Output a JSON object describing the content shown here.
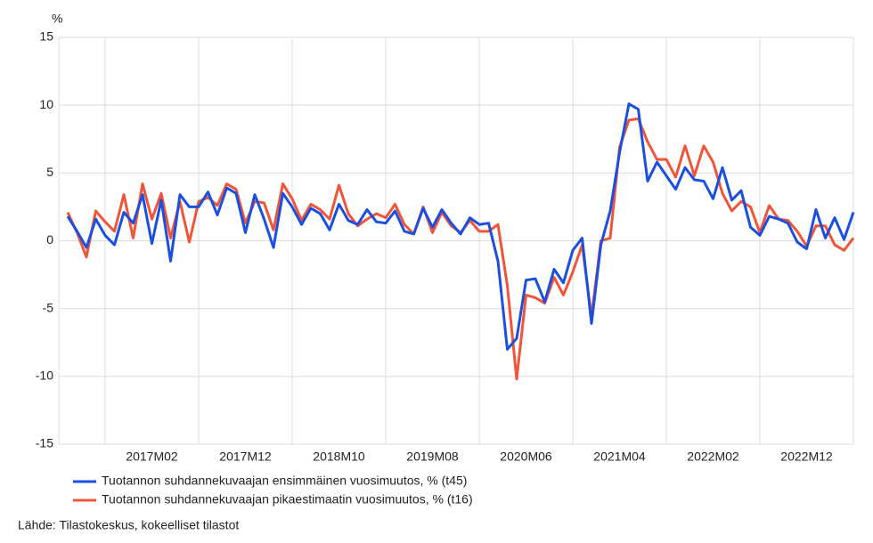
{
  "chart_data": {
    "type": "line",
    "y_unit": "%",
    "source": "Lähde: Tilastokeskus, kokeelliset tilastot",
    "categories": [
      null,
      null,
      null,
      null,
      null,
      null,
      null,
      null,
      null,
      "2017M02",
      null,
      null,
      null,
      null,
      null,
      null,
      null,
      null,
      null,
      "2017M12",
      null,
      null,
      null,
      null,
      null,
      null,
      null,
      null,
      null,
      "2018M10",
      null,
      null,
      null,
      null,
      null,
      null,
      null,
      null,
      null,
      "2019M08",
      null,
      null,
      null,
      null,
      null,
      null,
      null,
      null,
      null,
      "2020M06",
      null,
      null,
      null,
      null,
      null,
      null,
      null,
      null,
      null,
      "2021M04",
      null,
      null,
      null,
      null,
      null,
      null,
      null,
      null,
      null,
      "2022M02",
      null,
      null,
      null,
      null,
      null,
      null,
      null,
      null,
      null,
      "2022M12",
      null,
      null,
      null,
      null,
      null
    ],
    "series": [
      {
        "name": "Tuotannon suhdannekuvaajan ensimmäinen vuosimuutos, % (t45)",
        "color": "#1a4fe0",
        "values": [
          1.8,
          0.7,
          -0.5,
          1.6,
          0.4,
          -0.3,
          2.1,
          1.3,
          3.4,
          -0.2,
          3.0,
          -1.5,
          3.4,
          2.5,
          2.5,
          3.6,
          1.9,
          3.9,
          3.5,
          0.6,
          3.4,
          1.6,
          -0.5,
          3.5,
          2.5,
          1.2,
          2.4,
          2.0,
          0.8,
          2.7,
          1.5,
          1.2,
          2.3,
          1.4,
          1.3,
          2.2,
          0.7,
          0.5,
          2.4,
          1.0,
          2.3,
          1.3,
          0.5,
          1.7,
          1.2,
          1.3,
          -1.5,
          -8.0,
          -7.2,
          -2.9,
          -2.8,
          -4.5,
          -2.1,
          -3.1,
          -0.7,
          0.2,
          -6.1,
          -0.3,
          2.2,
          6.5,
          10.1,
          9.7,
          4.4,
          5.8,
          4.8,
          3.8,
          5.4,
          4.5,
          4.4,
          3.1,
          5.4,
          3.0,
          3.7,
          1.0,
          0.4,
          1.8,
          1.6,
          1.3,
          -0.1,
          -0.6,
          2.3,
          0.2,
          1.7,
          0.1,
          2.1
        ]
      },
      {
        "name": "Tuotannon suhdannekuvaajan pikaestimaatin vuosimuutos, % (t16)",
        "color": "#f0553a",
        "values": [
          2.1,
          0.6,
          -1.2,
          2.2,
          1.4,
          0.7,
          3.4,
          0.2,
          4.2,
          1.6,
          3.5,
          0.2,
          2.9,
          -0.1,
          2.9,
          3.2,
          2.6,
          4.2,
          3.8,
          1.3,
          2.9,
          2.8,
          0.8,
          4.2,
          3.1,
          1.5,
          2.7,
          2.3,
          1.6,
          4.1,
          2.0,
          1.1,
          1.6,
          2.0,
          1.7,
          2.7,
          1.2,
          0.5,
          2.5,
          0.6,
          2.1,
          1.1,
          0.6,
          1.5,
          0.7,
          0.7,
          1.2,
          -3.3,
          -10.2,
          -4.0,
          -4.2,
          -4.6,
          -2.7,
          -4.0,
          -2.3,
          -0.3,
          -5.6,
          0.0,
          0.2,
          6.9,
          8.9,
          9.0,
          7.3,
          6.0,
          6.0,
          4.7,
          7.0,
          4.8,
          7.0,
          5.8,
          3.5,
          2.2,
          2.9,
          2.5,
          0.6,
          2.6,
          1.6,
          1.5,
          0.7,
          -0.4,
          1.1,
          1.1,
          -0.3,
          -0.7,
          0.2
        ]
      }
    ],
    "ylim": [
      -15,
      15
    ],
    "yticks": [
      15,
      10,
      5,
      0,
      -5,
      -10,
      -15
    ],
    "grid": true
  }
}
